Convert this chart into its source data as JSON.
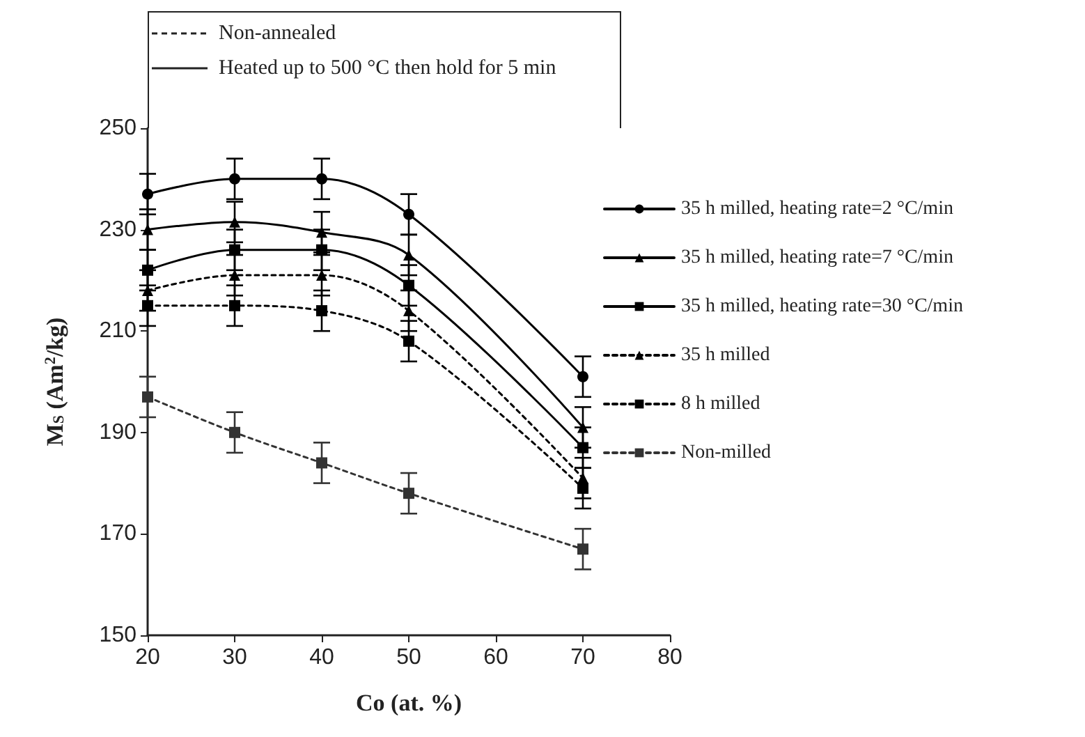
{
  "chart_data": {
    "type": "line",
    "xlabel": "Co (at. %)",
    "ylabel": "M$_{S}$ (Am$^{2}$/kg)",
    "x": [
      20,
      30,
      40,
      50,
      70
    ],
    "xlim": [
      20,
      80
    ],
    "xticks": [
      20,
      30,
      40,
      50,
      60,
      70,
      80
    ],
    "ylim": [
      150,
      250
    ],
    "yticks": [
      150,
      170,
      190,
      210,
      230,
      250
    ],
    "grid": false,
    "legend": "right",
    "annotations": [
      "Non-annealed",
      "Heated up to 500 °C then hold for 5 min"
    ],
    "series": [
      {
        "name": "35 h milled, heating rate=2 °C/min",
        "color": "#000000",
        "marker": "circle",
        "line_style": "solid",
        "values": [
          237,
          240,
          240,
          233,
          201
        ],
        "errors": [
          4,
          4,
          4,
          4,
          4
        ]
      },
      {
        "name": "35 h milled, heating rate=7 °C/min",
        "color": "#000000",
        "marker": "triangle",
        "line_style": "solid",
        "values": [
          230,
          231.5,
          229.5,
          225,
          191
        ],
        "errors": [
          4,
          4,
          4,
          4,
          4
        ]
      },
      {
        "name": "35 h milled, heating rate=30 °C/min",
        "color": "#000000",
        "marker": "square",
        "line_style": "solid",
        "values": [
          222,
          226,
          226,
          219,
          187
        ],
        "errors": [
          4,
          4,
          4,
          4,
          4
        ]
      },
      {
        "name": "35 h milled",
        "color": "#000000",
        "marker": "triangle",
        "line_style": "dotted",
        "values": [
          218,
          221,
          221,
          214,
          181
        ],
        "errors": [
          4,
          4,
          4,
          4,
          4
        ]
      },
      {
        "name": "8 h milled",
        "color": "#000000",
        "marker": "square",
        "line_style": "dotted",
        "values": [
          215,
          215,
          214,
          208,
          179
        ],
        "errors": [
          4,
          4,
          4,
          4,
          4
        ]
      },
      {
        "name": "Non-milled",
        "color": "#333333",
        "marker": "square",
        "line_style": "dotted",
        "values": [
          197,
          190,
          184,
          178,
          167
        ],
        "errors": [
          4,
          4,
          4,
          4,
          4
        ]
      }
    ]
  }
}
